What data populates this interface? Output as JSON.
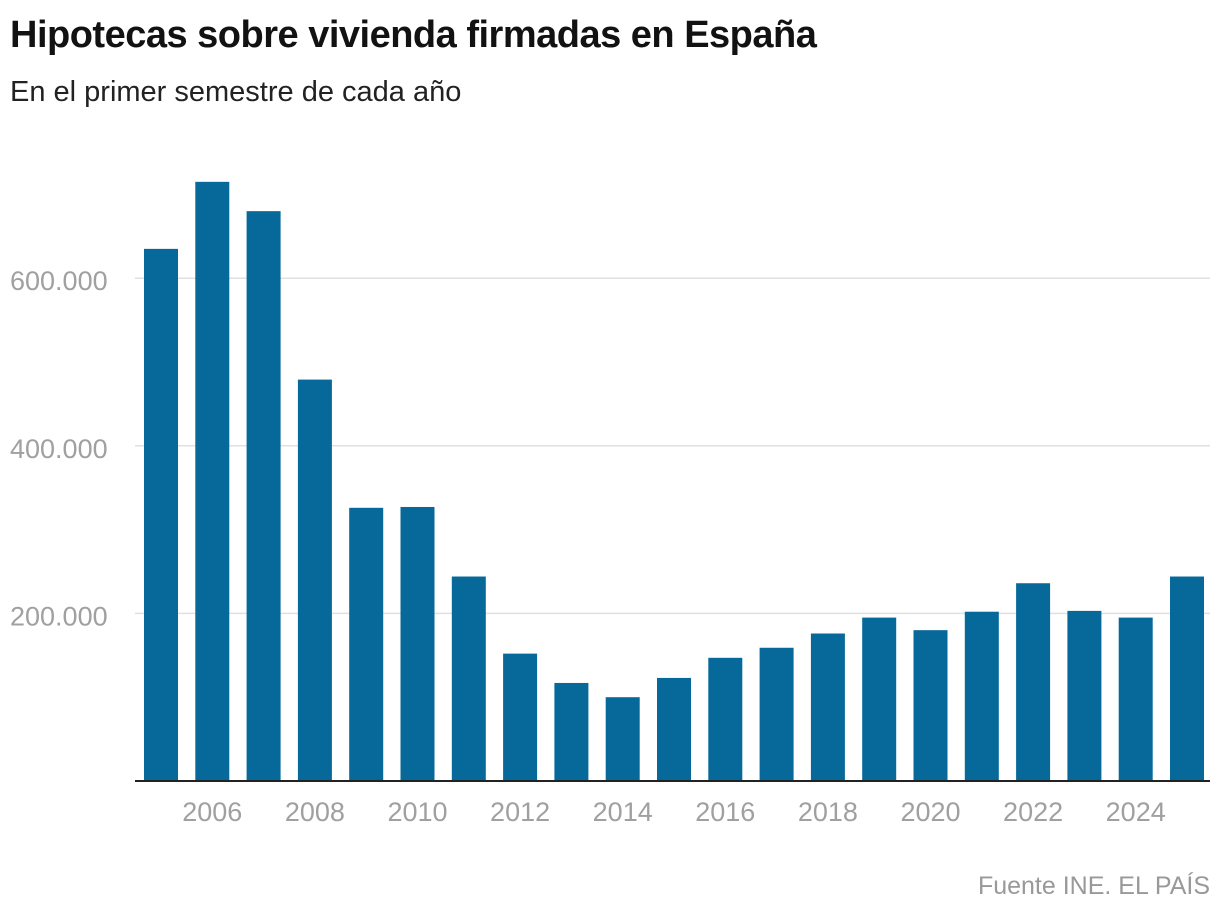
{
  "chart_data": {
    "type": "bar",
    "title": "Hipotecas sobre vivienda firmadas en España",
    "subtitle": "En el primer semestre de cada año",
    "source": "Fuente INE. EL PAÍS",
    "categories": [
      2005,
      2006,
      2007,
      2008,
      2009,
      2010,
      2011,
      2012,
      2013,
      2014,
      2015,
      2016,
      2017,
      2018,
      2019,
      2020,
      2021,
      2022,
      2023,
      2024,
      2025
    ],
    "values": [
      635000,
      715000,
      680000,
      479000,
      326000,
      327000,
      244000,
      152000,
      117000,
      100000,
      123000,
      147000,
      159000,
      176000,
      195000,
      180000,
      202000,
      236000,
      203000,
      195000,
      244000
    ],
    "xticks": [
      "2006",
      "2008",
      "2010",
      "2012",
      "2014",
      "2016",
      "2018",
      "2020",
      "2022",
      "2024"
    ],
    "yticks": [
      {
        "value": 200000,
        "label": "200.000"
      },
      {
        "value": 400000,
        "label": "400.000"
      },
      {
        "value": 600000,
        "label": "600.000"
      }
    ],
    "ylim": [
      0,
      800000
    ],
    "grid": true,
    "bar_color": "#06699a",
    "xlabel": "",
    "ylabel": ""
  }
}
